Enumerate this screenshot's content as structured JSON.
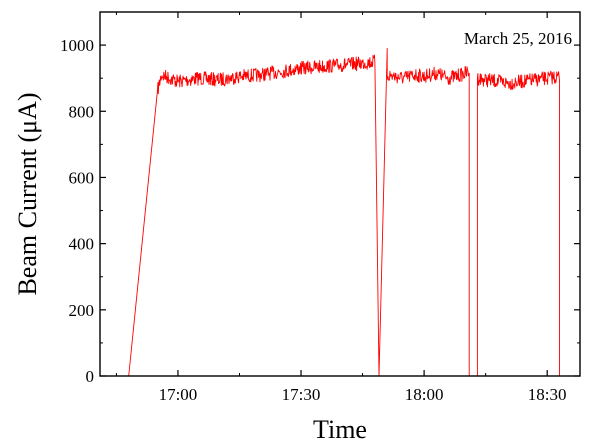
{
  "chart_data": {
    "type": "line",
    "title": "",
    "annotation": "March 25, 2016",
    "xlabel": "Time",
    "ylabel": "Beam Current (μA)",
    "xlim": [
      "16:41",
      "18:38"
    ],
    "ylim": [
      0,
      1100
    ],
    "xticks": [
      "17:00",
      "17:30",
      "18:00",
      "18:30"
    ],
    "yticks": [
      0,
      200,
      400,
      600,
      800,
      1000
    ],
    "grid": false,
    "series": [
      {
        "name": "",
        "color": "#ff0000",
        "x": [
          "16:48",
          "16:55",
          "16:56",
          "17:00",
          "17:05",
          "17:10",
          "17:15",
          "17:20",
          "17:25",
          "17:30",
          "17:35",
          "17:40",
          "17:45",
          "17:48",
          "17:49",
          "17:49",
          "17:51",
          "17:51",
          "17:53",
          "17:55",
          "17:58",
          "18:00",
          "18:03",
          "18:06",
          "18:09",
          "18:11",
          "18:11",
          "18:13",
          "18:13",
          "18:15",
          "18:18",
          "18:21",
          "18:24",
          "18:27",
          "18:30",
          "18:33",
          "18:33"
        ],
        "values": [
          0,
          860,
          910,
          890,
          900,
          895,
          905,
          910,
          920,
          930,
          935,
          940,
          945,
          950,
          0,
          0,
          990,
          910,
          905,
          900,
          910,
          905,
          915,
          900,
          910,
          920,
          0,
          0,
          900,
          895,
          890,
          885,
          890,
          895,
          900,
          905,
          0
        ]
      }
    ]
  }
}
